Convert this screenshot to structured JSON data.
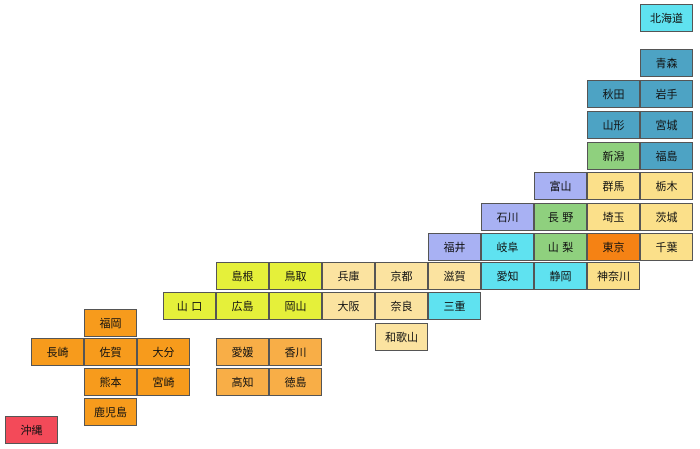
{
  "colors": {
    "hokkaido": "#5fe2f0",
    "tohoku": "#4da3c4",
    "niigata": "#8fd07e",
    "kanto": "#fbe08a",
    "tokyo": "#f58214",
    "hokuriku": "#a8b1f3",
    "chubu": "#8fd07e",
    "tokai": "#5fe2f0",
    "kinki": "#fbe3a0",
    "chugoku": "#e5f03a",
    "shikoku": "#f8ae47",
    "kyushu": "#f79b1c",
    "okinawa": "#f34a59"
  },
  "prefectures": [
    {
      "id": "hokkaido",
      "label": "北海道",
      "region": "hokkaido"
    },
    {
      "id": "aomori",
      "label": "青森",
      "region": "tohoku"
    },
    {
      "id": "akita",
      "label": "秋田",
      "region": "tohoku"
    },
    {
      "id": "iwate",
      "label": "岩手",
      "region": "tohoku"
    },
    {
      "id": "yamagata",
      "label": "山形",
      "region": "tohoku"
    },
    {
      "id": "miyagi",
      "label": "宮城",
      "region": "tohoku"
    },
    {
      "id": "niigata",
      "label": "新潟",
      "region": "niigata"
    },
    {
      "id": "fukushima",
      "label": "福島",
      "region": "tohoku"
    },
    {
      "id": "toyama",
      "label": "富山",
      "region": "hokuriku"
    },
    {
      "id": "gunma",
      "label": "群馬",
      "region": "kanto"
    },
    {
      "id": "tochigi",
      "label": "栃木",
      "region": "kanto"
    },
    {
      "id": "ishikawa",
      "label": "石川",
      "region": "hokuriku"
    },
    {
      "id": "nagano",
      "label": "長 野",
      "region": "chubu"
    },
    {
      "id": "saitama",
      "label": "埼玉",
      "region": "kanto"
    },
    {
      "id": "ibaraki",
      "label": "茨城",
      "region": "kanto"
    },
    {
      "id": "fukui",
      "label": "福井",
      "region": "hokuriku"
    },
    {
      "id": "gifu",
      "label": "岐阜",
      "region": "tokai"
    },
    {
      "id": "yamanashi",
      "label": "山 梨",
      "region": "chubu"
    },
    {
      "id": "tokyo",
      "label": "東京",
      "region": "tokyo"
    },
    {
      "id": "chiba",
      "label": "千葉",
      "region": "kanto"
    },
    {
      "id": "shimane",
      "label": "島根",
      "region": "chugoku"
    },
    {
      "id": "tottori",
      "label": "鳥取",
      "region": "chugoku"
    },
    {
      "id": "hyogo",
      "label": "兵庫",
      "region": "kinki"
    },
    {
      "id": "kyoto",
      "label": "京都",
      "region": "kinki"
    },
    {
      "id": "shiga",
      "label": "滋賀",
      "region": "kinki"
    },
    {
      "id": "aichi",
      "label": "愛知",
      "region": "tokai"
    },
    {
      "id": "shizuoka",
      "label": "静岡",
      "region": "tokai"
    },
    {
      "id": "kanagawa",
      "label": "神奈川",
      "region": "kanto"
    },
    {
      "id": "yamaguchi",
      "label": "山 口",
      "region": "chugoku"
    },
    {
      "id": "hiroshima",
      "label": "広島",
      "region": "chugoku"
    },
    {
      "id": "okayama",
      "label": "岡山",
      "region": "chugoku"
    },
    {
      "id": "osaka",
      "label": "大阪",
      "region": "kinki"
    },
    {
      "id": "nara",
      "label": "奈良",
      "region": "kinki"
    },
    {
      "id": "mie",
      "label": "三重",
      "region": "tokai"
    },
    {
      "id": "wakayama",
      "label": "和歌山",
      "region": "kinki"
    },
    {
      "id": "fukuoka",
      "label": "福岡",
      "region": "kyushu"
    },
    {
      "id": "nagasaki",
      "label": "長崎",
      "region": "kyushu"
    },
    {
      "id": "saga",
      "label": "佐賀",
      "region": "kyushu"
    },
    {
      "id": "oita",
      "label": "大分",
      "region": "kyushu"
    },
    {
      "id": "kumamoto",
      "label": "熊本",
      "region": "kyushu"
    },
    {
      "id": "miyazaki",
      "label": "宮崎",
      "region": "kyushu"
    },
    {
      "id": "kagoshima",
      "label": "鹿児島",
      "region": "kyushu"
    },
    {
      "id": "ehime",
      "label": "愛媛",
      "region": "shikoku"
    },
    {
      "id": "kagawa",
      "label": "香川",
      "region": "shikoku"
    },
    {
      "id": "kochi",
      "label": "高知",
      "region": "shikoku"
    },
    {
      "id": "tokushima",
      "label": "徳島",
      "region": "shikoku"
    },
    {
      "id": "okinawa",
      "label": "沖縄",
      "region": "okinawa"
    }
  ]
}
